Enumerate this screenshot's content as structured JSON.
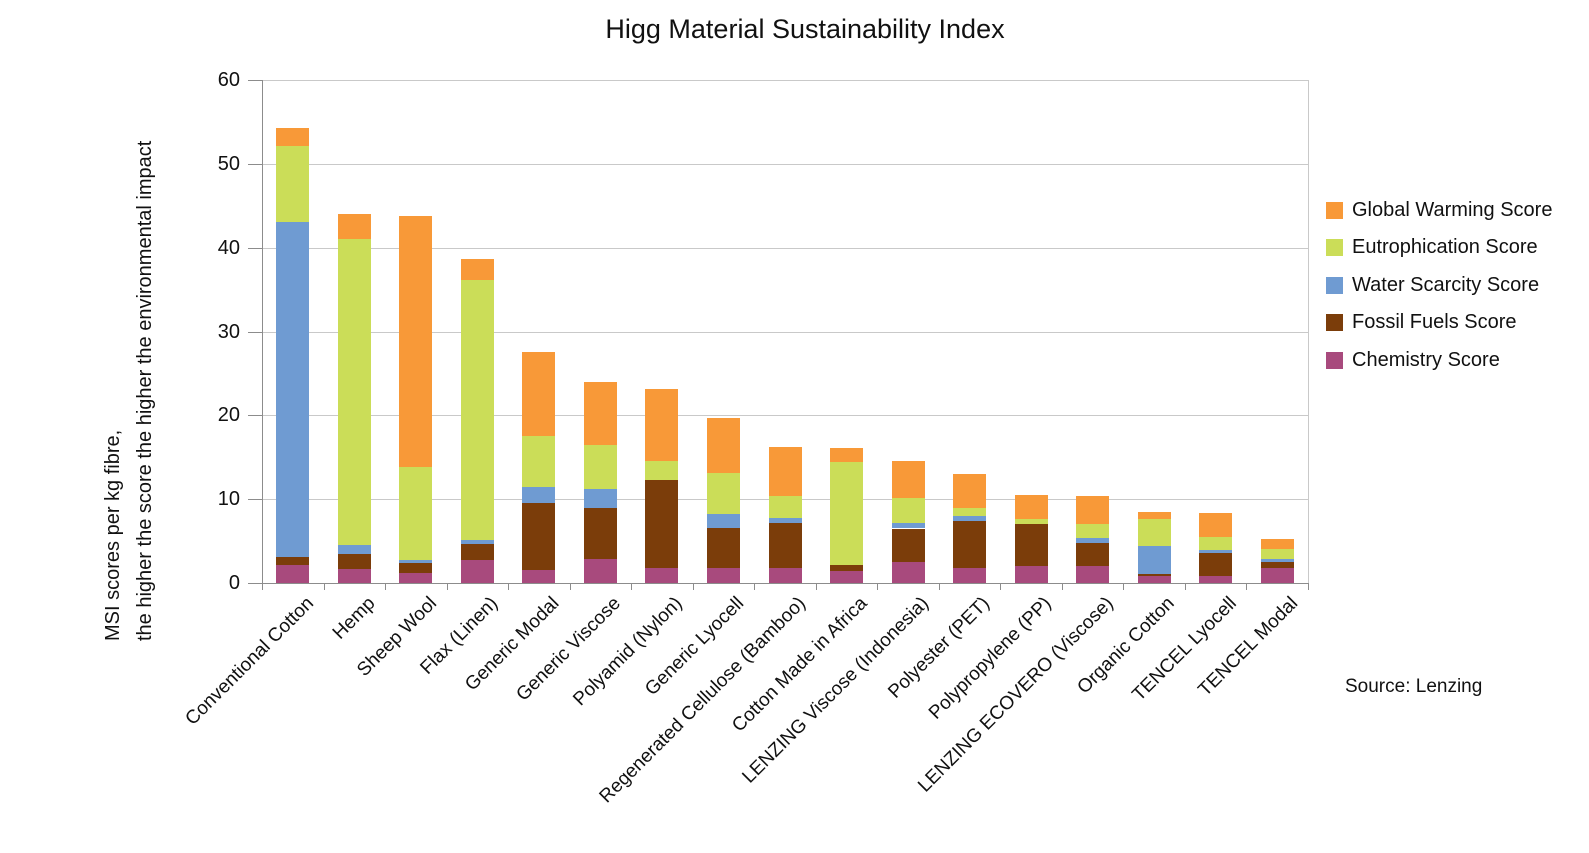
{
  "title": "Higg Material Sustainability Index",
  "source": "Source: Lenzing",
  "y_axis": {
    "label_line1": "MSI scores per kg fibre,",
    "label_line2": "the higher the score the higher the environmental impact",
    "ticks": [
      0,
      10,
      20,
      30,
      40,
      50,
      60
    ]
  },
  "colors": {
    "global_warming": "#f89938",
    "eutrophication": "#cbdd58",
    "water_scarcity": "#6f9bd2",
    "fossil_fuels": "#7b3d0a",
    "chemistry": "#a84a7d",
    "gridline": "#c9c9c9",
    "axis": "#8c8c8c"
  },
  "legend": [
    {
      "label": "Global Warming Score",
      "color": "#f89938"
    },
    {
      "label": "Eutrophication Score",
      "color": "#cbdd58"
    },
    {
      "label": "Water Scarcity Score",
      "color": "#6f9bd2"
    },
    {
      "label": "Fossil Fuels Score",
      "color": "#7b3d0a"
    },
    {
      "label": "Chemistry Score",
      "color": "#a84a7d"
    }
  ],
  "chart_data": {
    "type": "bar",
    "stacked": true,
    "title": "Higg Material Sustainability Index",
    "ylabel": "MSI scores per kg fibre, the higher the score the higher the environmental impact",
    "xlabel": "",
    "ylim": [
      0,
      60
    ],
    "grid": true,
    "legend_position": "right",
    "categories": [
      "Conventional Cotton",
      "Hemp",
      "Sheep Wool",
      "Flax (Linen)",
      "Generic Modal",
      "Generic Viscose",
      "Polyamid (Nylon)",
      "Generic Lyocell",
      "Regenerated Cellulose (Bamboo)",
      "Cotton Made in Africa",
      "LENZING Viscose (Indonesia)",
      "Polyester (PET)",
      "Polypropylene (PP)",
      "LENZING ECOVERO (Viscose)",
      "Organic Cotton",
      "TENCEL Lyocell",
      "TENCEL Modal"
    ],
    "series": [
      {
        "name": "Chemistry Score",
        "color": "#a84a7d",
        "values": [
          2.2,
          1.7,
          1.2,
          2.8,
          1.6,
          2.9,
          1.8,
          1.8,
          1.8,
          1.4,
          2.5,
          1.8,
          2.0,
          2.0,
          0.8,
          0.8,
          1.8
        ]
      },
      {
        "name": "Fossil Fuels Score",
        "color": "#7b3d0a",
        "values": [
          0.9,
          1.7,
          1.2,
          1.9,
          8.0,
          6.0,
          10.5,
          4.8,
          5.4,
          0.7,
          4.0,
          5.6,
          5.0,
          2.8,
          0.3,
          2.8,
          0.7
        ]
      },
      {
        "name": "Water Scarcity Score",
        "color": "#6f9bd2",
        "values": [
          40.0,
          1.1,
          0.4,
          0.4,
          1.8,
          2.3,
          0.0,
          1.6,
          0.6,
          0.0,
          0.7,
          0.6,
          0.0,
          0.6,
          3.3,
          0.3,
          0.4
        ]
      },
      {
        "name": "Eutrophication Score",
        "color": "#cbdd58",
        "values": [
          9.0,
          36.5,
          11.0,
          31.1,
          6.1,
          5.3,
          2.2,
          4.9,
          2.6,
          12.3,
          2.9,
          0.9,
          0.6,
          1.6,
          3.2,
          1.6,
          1.2
        ]
      },
      {
        "name": "Global Warming Score",
        "color": "#f89938",
        "values": [
          2.2,
          3.0,
          30.0,
          2.5,
          10.1,
          7.5,
          8.6,
          6.6,
          5.8,
          1.7,
          4.4,
          4.1,
          2.9,
          3.4,
          0.9,
          2.9,
          1.1
        ]
      }
    ],
    "totals": [
      54.3,
      44.0,
      43.8,
      38.7,
      27.6,
      24.0,
      23.1,
      19.7,
      16.2,
      16.1,
      14.5,
      13.0,
      10.5,
      10.4,
      8.5,
      8.4,
      5.2
    ]
  }
}
